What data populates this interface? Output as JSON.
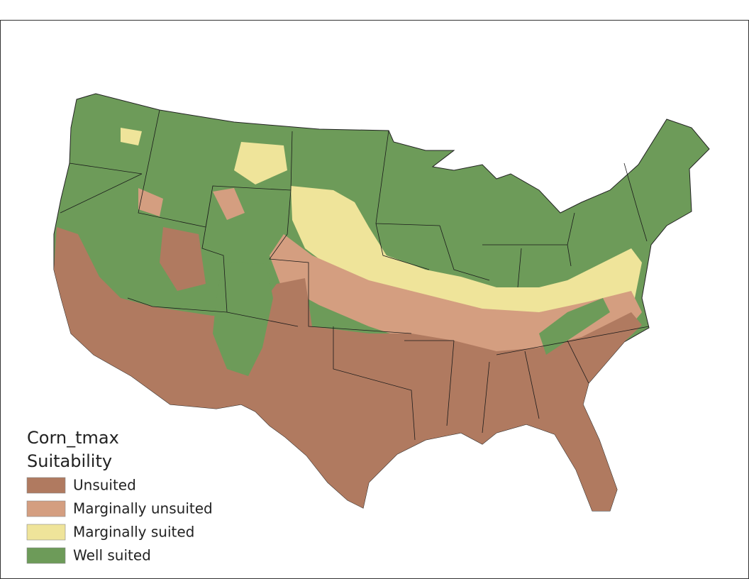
{
  "legend": {
    "title": [
      "Corn_tmax",
      "Suitability"
    ],
    "items": [
      {
        "label": "Unsuited",
        "color": "#b07a60"
      },
      {
        "label": "Marginally unsuited",
        "color": "#d49e80"
      },
      {
        "label": "Marginally suited",
        "color": "#efe49a"
      },
      {
        "label": "Well suited",
        "color": "#6d9b59"
      }
    ]
  }
}
